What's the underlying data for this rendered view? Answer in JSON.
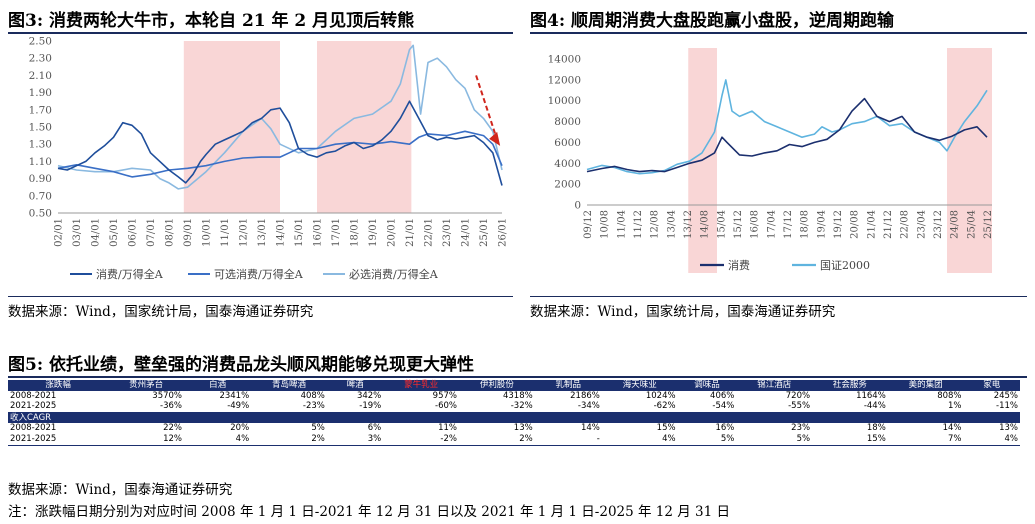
{
  "fig3": {
    "title": "图3:  消费两轮大牛市，本轮自 21 年 2 月见顶后转熊",
    "source": "数据来源：Wind，国家统计局，国泰海通证券研究",
    "chart_data": {
      "type": "line",
      "title": "图3:  消费两轮大牛市，本轮自 21 年 2 月见顶后转熊",
      "ylim": [
        0.5,
        2.5
      ],
      "y_ticks": [
        "0.50",
        "0.70",
        "0.90",
        "1.10",
        "1.30",
        "1.50",
        "1.70",
        "1.90",
        "2.10",
        "2.30",
        "2.50"
      ],
      "x_ticks": [
        "02/01",
        "03/01",
        "04/01",
        "05/01",
        "06/01",
        "07/01",
        "08/01",
        "09/01",
        "10/01",
        "11/01",
        "12/01",
        "13/01",
        "14/01",
        "15/01",
        "16/01",
        "17/01",
        "18/01",
        "19/01",
        "20/01",
        "21/01",
        "22/01",
        "23/01",
        "24/01",
        "25/01",
        "26/01"
      ],
      "shaded": [
        [
          2008.8,
          2014.0
        ],
        [
          2016.0,
          2021.1
        ]
      ],
      "colors": {
        "s1": "#1f4e9b",
        "s2": "#3a6fc6",
        "s3": "#8ab9e0",
        "shade": "#f9d6d6",
        "arrow": "#d0261d"
      },
      "series": [
        {
          "name": "消费/万得全A",
          "x": [
            2002.0,
            2002.5,
            2003.0,
            2003.5,
            2004.0,
            2004.5,
            2005.0,
            2005.5,
            2006.0,
            2006.5,
            2007.0,
            2007.5,
            2008.0,
            2008.5,
            2008.9,
            2009.3,
            2009.7,
            2010.0,
            2010.5,
            2011.0,
            2011.5,
            2012.0,
            2012.5,
            2013.0,
            2013.5,
            2014.0,
            2014.5,
            2015.0,
            2015.5,
            2016.0,
            2016.5,
            2017.0,
            2017.5,
            2018.0,
            2018.5,
            2019.0,
            2019.5,
            2020.0,
            2020.5,
            2021.0,
            2021.5,
            2022.0,
            2022.5,
            2023.0,
            2023.5,
            2024.0,
            2024.5,
            2025.0,
            2025.5,
            2026.0
          ],
          "values": [
            1.02,
            1.0,
            1.05,
            1.1,
            1.2,
            1.28,
            1.38,
            1.55,
            1.52,
            1.42,
            1.2,
            1.1,
            1.0,
            0.92,
            0.85,
            0.95,
            1.1,
            1.18,
            1.3,
            1.35,
            1.4,
            1.45,
            1.55,
            1.6,
            1.7,
            1.72,
            1.55,
            1.25,
            1.18,
            1.15,
            1.2,
            1.22,
            1.28,
            1.32,
            1.25,
            1.28,
            1.35,
            1.45,
            1.6,
            1.8,
            1.6,
            1.4,
            1.35,
            1.38,
            1.36,
            1.38,
            1.4,
            1.32,
            1.2,
            0.82
          ]
        },
        {
          "name": "可选消费/万得全A",
          "x": [
            2002.0,
            2003.0,
            2004.0,
            2005.0,
            2006.0,
            2007.0,
            2008.0,
            2009.0,
            2010.0,
            2011.0,
            2012.0,
            2013.0,
            2014.0,
            2014.5,
            2015.0,
            2016.0,
            2017.0,
            2018.0,
            2019.0,
            2020.0,
            2021.0,
            2021.5,
            2022.0,
            2023.0,
            2024.0,
            2025.0,
            2025.5,
            2026.0
          ],
          "values": [
            1.02,
            1.06,
            1.02,
            0.98,
            0.92,
            0.95,
            1.0,
            1.02,
            1.05,
            1.1,
            1.14,
            1.15,
            1.15,
            1.2,
            1.25,
            1.25,
            1.3,
            1.32,
            1.3,
            1.33,
            1.3,
            1.38,
            1.42,
            1.4,
            1.45,
            1.4,
            1.3,
            1.05
          ]
        },
        {
          "name": "必选消费/万得全A",
          "x": [
            2002.0,
            2003.0,
            2004.0,
            2005.0,
            2006.0,
            2007.0,
            2007.5,
            2008.0,
            2008.5,
            2009.0,
            2010.0,
            2011.0,
            2012.0,
            2013.0,
            2013.5,
            2014.0,
            2015.0,
            2016.0,
            2016.5,
            2017.0,
            2018.0,
            2019.0,
            2020.0,
            2020.5,
            2021.0,
            2021.2,
            2021.6,
            2022.0,
            2022.5,
            2023.0,
            2023.5,
            2024.0,
            2024.5,
            2025.0,
            2025.5,
            2026.0
          ],
          "values": [
            1.05,
            1.0,
            0.98,
            0.98,
            1.02,
            1.0,
            0.9,
            0.85,
            0.78,
            0.8,
            0.98,
            1.2,
            1.45,
            1.6,
            1.48,
            1.3,
            1.2,
            1.25,
            1.35,
            1.45,
            1.6,
            1.65,
            1.8,
            2.0,
            2.4,
            2.45,
            1.65,
            2.25,
            2.3,
            2.2,
            2.05,
            1.95,
            1.7,
            1.6,
            1.45,
            1.0
          ]
        }
      ]
    }
  },
  "fig4": {
    "title": "图4:  顺周期消费大盘股跑赢小盘股，逆周期跑输",
    "source": "数据来源：Wind，国家统计局，国泰海通证券研究",
    "chart_data": {
      "type": "line",
      "title": "图4:  顺周期消费大盘股跑赢小盘股，逆周期跑输",
      "ylim": [
        0,
        14000
      ],
      "y_ticks": [
        "0",
        "2000",
        "4000",
        "6000",
        "8000",
        "10000",
        "12000",
        "14000"
      ],
      "x_ticks": [
        "09/12",
        "10/08",
        "11/04",
        "11/12",
        "12/08",
        "13/04",
        "13/12",
        "14/08",
        "15/04",
        "15/12",
        "16/08",
        "17/04",
        "17/12",
        "18/08",
        "19/04",
        "19/12",
        "20/08",
        "21/04",
        "21/12",
        "22/08",
        "23/04",
        "23/12",
        "24/08",
        "25/04",
        "25/12"
      ],
      "shaded": [
        [
          2013.95,
          2015.1
        ],
        [
          2024.3,
          2026.1
        ]
      ],
      "colors": {
        "s1": "#1b2f6e",
        "s2": "#5fb4df",
        "shade": "#f9d6d6"
      },
      "series": [
        {
          "name": "消费",
          "x": [
            2009.9,
            2010.5,
            2011.0,
            2011.5,
            2012.0,
            2012.5,
            2013.0,
            2013.5,
            2014.0,
            2014.5,
            2015.0,
            2015.3,
            2015.5,
            2016.0,
            2016.5,
            2017.0,
            2017.5,
            2018.0,
            2018.5,
            2019.0,
            2019.5,
            2020.0,
            2020.5,
            2021.0,
            2021.5,
            2022.0,
            2022.5,
            2023.0,
            2023.5,
            2024.0,
            2024.5,
            2025.0,
            2025.5,
            2025.9
          ],
          "values": [
            3200,
            3500,
            3700,
            3400,
            3200,
            3300,
            3200,
            3600,
            4000,
            4300,
            5000,
            6500,
            6000,
            4800,
            4700,
            5000,
            5200,
            5800,
            5600,
            6000,
            6300,
            7200,
            9000,
            10200,
            8500,
            8000,
            8500,
            7000,
            6500,
            6200,
            6600,
            7200,
            7500,
            6500
          ]
        },
        {
          "name": "国证2000",
          "x": [
            2009.9,
            2010.5,
            2011.0,
            2011.5,
            2012.0,
            2012.5,
            2013.0,
            2013.5,
            2014.0,
            2014.5,
            2015.0,
            2015.3,
            2015.45,
            2015.7,
            2016.0,
            2016.5,
            2017.0,
            2017.5,
            2018.0,
            2018.5,
            2019.0,
            2019.3,
            2019.7,
            2020.0,
            2020.5,
            2021.0,
            2021.5,
            2022.0,
            2022.5,
            2023.0,
            2023.5,
            2024.0,
            2024.3,
            2024.6,
            2025.0,
            2025.5,
            2025.9
          ],
          "values": [
            3400,
            3800,
            3600,
            3200,
            3000,
            3100,
            3300,
            3900,
            4200,
            5000,
            7000,
            10500,
            12000,
            9000,
            8500,
            9000,
            8000,
            7500,
            7000,
            6500,
            6800,
            7500,
            7000,
            7200,
            7800,
            8000,
            8500,
            7600,
            7800,
            7000,
            6500,
            6000,
            5200,
            6500,
            8000,
            9500,
            11000
          ]
        }
      ]
    }
  },
  "fig5": {
    "title": "图5:  依托业绩，壁垒强的消费品龙头顺风期能够兑现更大弹性",
    "source": "数据来源：Wind，国泰海通证券研究",
    "note": "注：涨跌幅日期分别为对应时间 2008 年 1 月 1 日-2021 年 12 月 31 日以及 2021 年 1 月 1 日-2025 年 12 月 31 日",
    "chart_data": {
      "type": "table",
      "header": [
        "涨跌幅",
        "贵州茅台",
        "白酒",
        "青岛啤酒",
        "啤酒",
        "蒙牛乳业",
        "伊利股份",
        "乳制品",
        "海天味业",
        "调味品",
        "锦江酒店",
        "社会服务",
        "美的集团",
        "家电"
      ],
      "rows_change": [
        [
          "2008-2021",
          "3570%",
          "2341%",
          "408%",
          "342%",
          "957%",
          "4318%",
          "2186%",
          "1024%",
          "406%",
          "720%",
          "1164%",
          "808%",
          "245%"
        ],
        [
          "2021-2025",
          "-36%",
          "-49%",
          "-23%",
          "-19%",
          "-60%",
          "-32%",
          "-34%",
          "-62%",
          "-54%",
          "-55%",
          "-44%",
          "1%",
          "-11%"
        ]
      ],
      "cagr_label": "收入CAGR",
      "rows_cagr": [
        [
          "2008-2021",
          "22%",
          "20%",
          "5%",
          "6%",
          "11%",
          "13%",
          "14%",
          "15%",
          "16%",
          "23%",
          "18%",
          "14%",
          "13%"
        ],
        [
          "2021-2025",
          "12%",
          "4%",
          "2%",
          "3%",
          "-2%",
          "2%",
          "-",
          "4%",
          "5%",
          "5%",
          "15%",
          "7%",
          "4%"
        ]
      ]
    }
  }
}
